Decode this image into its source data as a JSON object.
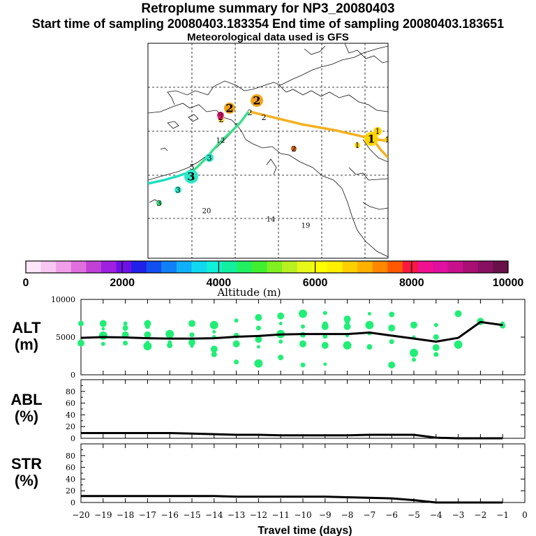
{
  "titles": {
    "main": "Retroplume summary for NP3_20080403",
    "sampling": "Start time of sampling 20080403.183354     End time of sampling 20080403.183651",
    "meteo": "Meteorological data used is GFS"
  },
  "chart_data": [
    {
      "type": "map",
      "title": "Retroplume trajectory map",
      "markers": [
        {
          "label": "2",
          "color": "#f2a21a",
          "big": true
        },
        {
          "label": "2",
          "color": "#f2a21a",
          "big": true
        },
        {
          "label": "2",
          "color": "#ffe066",
          "big": false
        },
        {
          "label": "2",
          "color": "#e0186e",
          "big": false
        },
        {
          "label": "2",
          "color": "#e0186e",
          "big": false
        },
        {
          "label": "2",
          "color": "#ffffff",
          "big": false
        },
        {
          "label": "2",
          "color": "#ffffff",
          "big": false
        },
        {
          "label": "2",
          "color": "#d06010",
          "big": false
        },
        {
          "label": "1",
          "color": "#ffd400",
          "big": true
        },
        {
          "label": "1",
          "color": "#ffd400",
          "big": false
        },
        {
          "label": "1",
          "color": "#ffd400",
          "big": false
        },
        {
          "label": "1",
          "color": "#ffd400",
          "big": false
        },
        {
          "label": "3",
          "color": "#2ee8c8",
          "big": true
        },
        {
          "label": "3",
          "color": "#2ee8c8",
          "big": false
        },
        {
          "label": "3",
          "color": "#2ee8c8",
          "big": false
        },
        {
          "label": "3",
          "color": "#3ad97a",
          "big": false
        },
        {
          "label": "5",
          "color": "#ffffff",
          "big": false
        },
        {
          "label": "12",
          "color": "#ffffff",
          "big": false
        },
        {
          "label": "20",
          "color": "#ffe066",
          "big": false
        },
        {
          "label": "14",
          "color": "#ffe066",
          "big": false
        },
        {
          "label": "19",
          "color": "#ffe066",
          "big": false
        }
      ],
      "paths": [
        {
          "name": "orange-path",
          "color": "#f5b020"
        },
        {
          "name": "green-path",
          "color": "#3ae08a"
        },
        {
          "name": "cyan-path",
          "color": "#1ee0c0"
        }
      ]
    },
    {
      "type": "colorbar",
      "xlabel": "Altitude (m)",
      "range": [
        0,
        10000
      ],
      "ticks": [
        {
          "value": 0,
          "label": "0"
        },
        {
          "value": 2000,
          "label": "2000"
        },
        {
          "value": 4000,
          "label": "4000"
        },
        {
          "value": 6000,
          "label": "6000"
        },
        {
          "value": 8000,
          "label": "8000"
        },
        {
          "value": 10000,
          "label": "10000"
        }
      ],
      "colors": [
        "#fde6f8",
        "#f8c6f2",
        "#f09ee8",
        "#e070e0",
        "#c040d8",
        "#a020e0",
        "#7010e8",
        "#2020e8",
        "#1050f0",
        "#1080f8",
        "#10b0f8",
        "#10d8f0",
        "#10f0d8",
        "#10f0a0",
        "#20f060",
        "#40f030",
        "#80f020",
        "#b8f020",
        "#e8f818",
        "#ffff00",
        "#fff000",
        "#ffd000",
        "#ffb000",
        "#ff8800",
        "#ff5800",
        "#f81840",
        "#f01090",
        "#e010a0",
        "#c8108c",
        "#a81074",
        "#881060",
        "#681048"
      ],
      "lines_at": [
        2000,
        4000,
        6000,
        8000
      ]
    },
    {
      "type": "line",
      "ylabel_line1": "ALT",
      "ylabel_line2": "(m)",
      "ylim": [
        0,
        10000
      ],
      "y_ticks": [
        {
          "value": 10000,
          "label": "10000"
        },
        {
          "value": 5000,
          "label": "5000"
        },
        {
          "value": 0,
          "label": "0"
        }
      ],
      "x": [
        -20,
        -19,
        -18,
        -17,
        -16,
        -15,
        -14,
        -13,
        -12,
        -11,
        -10,
        -9,
        -8,
        -7,
        -6,
        -5,
        -4,
        -3,
        -2,
        -1
      ],
      "series": [
        {
          "name": "mean altitude",
          "values": [
            4900,
            5000,
            4950,
            4850,
            4800,
            4800,
            4850,
            5050,
            5150,
            5350,
            5400,
            5400,
            5400,
            5600,
            5200,
            4800,
            4400,
            4900,
            7000,
            6600
          ]
        }
      ],
      "dots": [
        {
          "x": -20,
          "y": [
            4200,
            6800
          ]
        },
        {
          "x": -19,
          "y": [
            4100,
            5200,
            6100,
            6800
          ]
        },
        {
          "x": -18,
          "y": [
            4200,
            5300,
            6200,
            6800
          ]
        },
        {
          "x": -17,
          "y": [
            3800,
            4300,
            5300,
            6400,
            6800
          ]
        },
        {
          "x": -16,
          "y": [
            3900,
            4300,
            5400
          ]
        },
        {
          "x": -15,
          "y": [
            3800,
            4300,
            5300,
            6800
          ]
        },
        {
          "x": -14,
          "y": [
            2700,
            5000,
            6600,
            5700,
            3400
          ]
        },
        {
          "x": -13,
          "y": [
            1700,
            4100,
            5200,
            7200
          ]
        },
        {
          "x": -12,
          "y": [
            1500,
            3700,
            4700,
            6200,
            7600
          ]
        },
        {
          "x": -11,
          "y": [
            2300,
            4400,
            5400,
            6800,
            7800
          ]
        },
        {
          "x": -10,
          "y": [
            1300,
            4100,
            5300,
            6400,
            8100
          ]
        },
        {
          "x": -9,
          "y": [
            1400,
            3900,
            5100,
            6400,
            6700,
            8200
          ]
        },
        {
          "x": -8,
          "y": [
            3900,
            5200,
            6400,
            7000,
            7400
          ]
        },
        {
          "x": -7,
          "y": [
            3700,
            5500,
            6600,
            8100
          ]
        },
        {
          "x": -6,
          "y": [
            1300,
            4400,
            6200,
            8000
          ]
        },
        {
          "x": -5,
          "y": [
            2000,
            2900,
            5000,
            6600
          ]
        },
        {
          "x": -4,
          "y": [
            2700,
            3600,
            5000,
            6600
          ]
        },
        {
          "x": -3,
          "y": [
            4000,
            4200,
            8100
          ]
        },
        {
          "x": -2,
          "y": [
            6900,
            7100
          ]
        },
        {
          "x": -1,
          "y": [
            6500,
            6800
          ]
        }
      ],
      "dot_color": "#22ee77"
    },
    {
      "type": "line",
      "ylabel_line1": "ABL",
      "ylabel_line2": "(%)",
      "ylim": [
        0,
        100
      ],
      "y_ticks": [
        {
          "value": 80,
          "label": "80"
        },
        {
          "value": 60,
          "label": "60"
        },
        {
          "value": 40,
          "label": "40"
        },
        {
          "value": 20,
          "label": "20"
        },
        {
          "value": 0,
          "label": "0"
        }
      ],
      "x": [
        -20,
        -19,
        -18,
        -17,
        -16,
        -15,
        -14,
        -13,
        -12,
        -11,
        -10,
        -9,
        -8,
        -7,
        -6,
        -5,
        -4,
        -3,
        -2,
        -1
      ],
      "series": [
        {
          "name": "ABL fraction",
          "values": [
            9,
            9,
            9,
            9,
            9,
            8,
            7,
            6,
            6,
            5,
            5,
            5,
            5,
            6,
            6,
            6,
            1,
            0,
            0,
            0
          ]
        }
      ]
    },
    {
      "type": "line",
      "ylabel_line1": "STR",
      "ylabel_line2": "(%)",
      "ylim": [
        0,
        100
      ],
      "y_ticks": [
        {
          "value": 80,
          "label": "80"
        },
        {
          "value": 60,
          "label": "60"
        },
        {
          "value": 40,
          "label": "40"
        },
        {
          "value": 20,
          "label": "20"
        },
        {
          "value": 0,
          "label": "0"
        }
      ],
      "x": [
        -20,
        -19,
        -18,
        -17,
        -16,
        -15,
        -14,
        -13,
        -12,
        -11,
        -10,
        -9,
        -8,
        -7,
        -6,
        -5,
        -4,
        -3,
        -2,
        -1
      ],
      "series": [
        {
          "name": "STR fraction",
          "values": [
            11,
            11,
            11,
            11,
            11,
            11,
            11,
            10,
            10,
            10,
            10,
            10,
            9,
            8,
            7,
            4,
            0,
            0,
            0,
            0
          ]
        }
      ],
      "xlabel": "Travel time (days)",
      "xlim": [
        -20,
        0
      ],
      "x_ticks": [
        {
          "value": -20,
          "label": "−20"
        },
        {
          "value": -19,
          "label": "−19"
        },
        {
          "value": -18,
          "label": "−18"
        },
        {
          "value": -17,
          "label": "−17"
        },
        {
          "value": -16,
          "label": "−16"
        },
        {
          "value": -15,
          "label": "−15"
        },
        {
          "value": -14,
          "label": "−14"
        },
        {
          "value": -13,
          "label": "−13"
        },
        {
          "value": -12,
          "label": "−12"
        },
        {
          "value": -11,
          "label": "−11"
        },
        {
          "value": -10,
          "label": "−10"
        },
        {
          "value": -9,
          "label": "−9"
        },
        {
          "value": -8,
          "label": "−8"
        },
        {
          "value": -7,
          "label": "−7"
        },
        {
          "value": -6,
          "label": "−6"
        },
        {
          "value": -5,
          "label": "−5"
        },
        {
          "value": -4,
          "label": "−4"
        },
        {
          "value": -3,
          "label": "−3"
        },
        {
          "value": -2,
          "label": "−2"
        },
        {
          "value": -1,
          "label": "−1"
        },
        {
          "value": 0,
          "label": "0"
        }
      ]
    }
  ]
}
